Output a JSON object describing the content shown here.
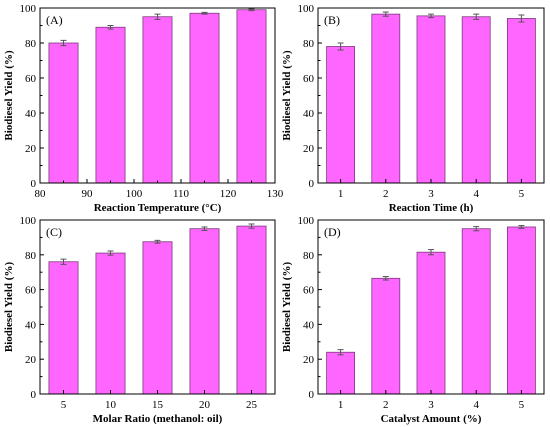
{
  "colors": {
    "bar_fill": "#ff66ff",
    "bar_stroke": "#7a3a7a",
    "error_bar": "#555555",
    "axis": "#000000"
  },
  "chart_data": [
    {
      "type": "bar",
      "panel_label": "(A)",
      "title": "",
      "xlabel": "Reaction Temperature (°C)",
      "ylabel": "Biodiesel Yield (%)",
      "x": [
        85,
        95,
        105,
        115,
        125
      ],
      "values": [
        80,
        89,
        95,
        97,
        99
      ],
      "errors": [
        1.5,
        1,
        1.5,
        0.5,
        0.5
      ],
      "xlim": [
        80,
        130
      ],
      "ylim": [
        0,
        100
      ],
      "xticks": [
        80,
        90,
        100,
        110,
        120,
        130
      ],
      "yticks": [
        0,
        20,
        40,
        60,
        80,
        100
      ],
      "grid": false
    },
    {
      "type": "bar",
      "panel_label": "(B)",
      "title": "",
      "xlabel": "Reaction Time (h)",
      "ylabel": "Biodiesel Yield (%)",
      "categories": [
        "1",
        "2",
        "3",
        "4",
        "5"
      ],
      "values": [
        78,
        96.5,
        95.5,
        95,
        94
      ],
      "errors": [
        2,
        1.2,
        1,
        1.5,
        2
      ],
      "ylim": [
        0,
        100
      ],
      "yticks": [
        0,
        20,
        40,
        60,
        80,
        100
      ],
      "grid": false
    },
    {
      "type": "bar",
      "panel_label": "(C)",
      "title": "",
      "xlabel": "Molar Ratio (methanol: oil)",
      "ylabel": "Biodiesel Yield (%)",
      "categories": [
        "5",
        "10",
        "15",
        "20",
        "25"
      ],
      "values": [
        76,
        81,
        87.5,
        95,
        96.5
      ],
      "errors": [
        1.5,
        1.2,
        0.8,
        1,
        1.2
      ],
      "ylim": [
        0,
        100
      ],
      "yticks": [
        0,
        20,
        40,
        60,
        80,
        100
      ],
      "grid": false
    },
    {
      "type": "bar",
      "panel_label": "(D)",
      "title": "",
      "xlabel": "Catalyst Amount (%)",
      "ylabel": "Biodiesel Yield (%)",
      "categories": [
        "1",
        "2",
        "3",
        "4",
        "5"
      ],
      "values": [
        24,
        66.5,
        81.5,
        95,
        96
      ],
      "errors": [
        1.5,
        1,
        1.5,
        1.2,
        0.8
      ],
      "ylim": [
        0,
        100
      ],
      "yticks": [
        0,
        20,
        40,
        60,
        80,
        100
      ],
      "grid": false
    }
  ]
}
